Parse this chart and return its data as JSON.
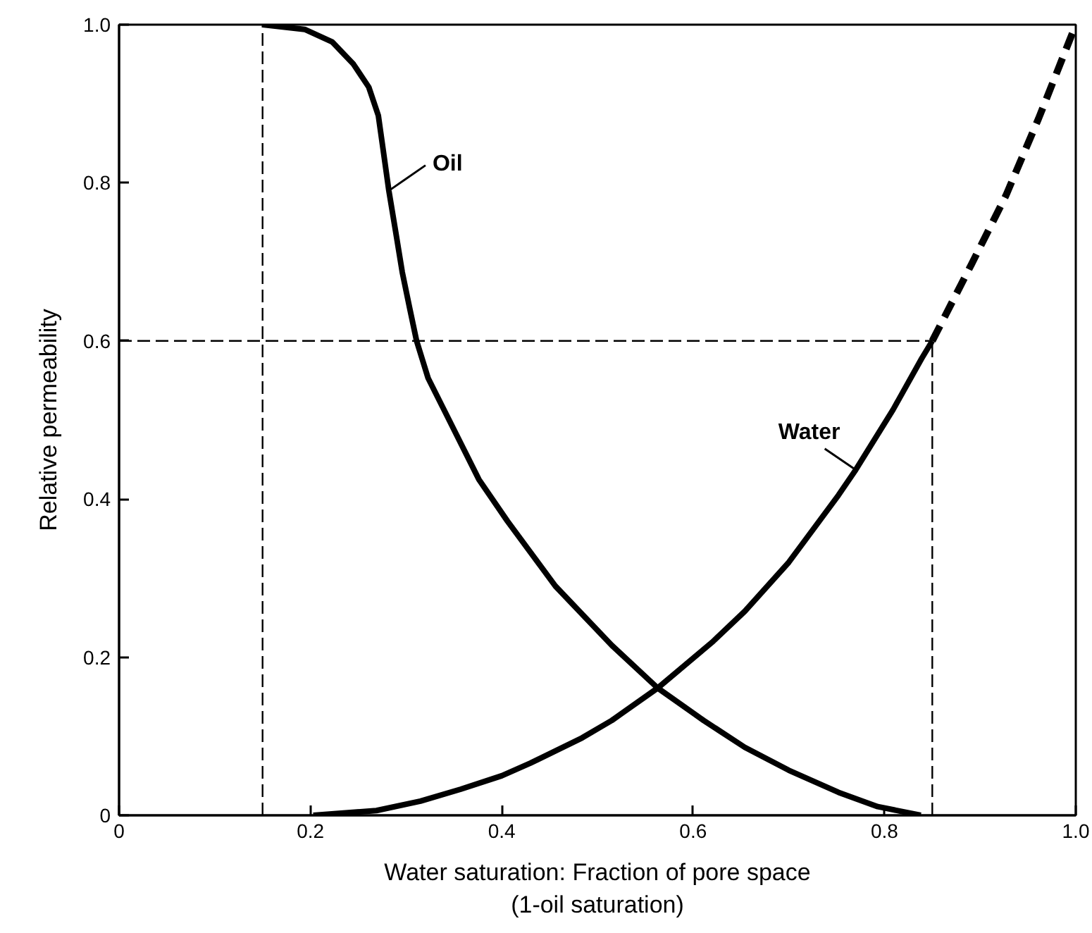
{
  "chart_data": {
    "type": "line",
    "xlabel": "Water saturation: Fraction of pore space\n(1-oil saturation)",
    "ylabel": "Relative permeability",
    "xlim": [
      0,
      1.0
    ],
    "ylim": [
      0,
      1.0
    ],
    "xticks": [
      0,
      0.2,
      0.4,
      0.6,
      0.8,
      {
        "value": 1.0,
        "label": "1.0"
      }
    ],
    "yticks": [
      0,
      0.2,
      0.4,
      0.6,
      0.8,
      {
        "value": 1.0,
        "label": "1.0"
      }
    ],
    "series": [
      {
        "name": "Oil",
        "color": "#000000",
        "line_style": "solid",
        "x": [
          0.15,
          0.194,
          0.223,
          0.245,
          0.261,
          0.271,
          0.276,
          0.282,
          0.289,
          0.296,
          0.304,
          0.311,
          0.323,
          0.34,
          0.376,
          0.406,
          0.456,
          0.515,
          0.563,
          0.611,
          0.654,
          0.7,
          0.752,
          0.793,
          0.838
        ],
        "values": [
          1.0,
          0.994,
          0.978,
          0.95,
          0.921,
          0.885,
          0.842,
          0.79,
          0.739,
          0.687,
          0.64,
          0.6,
          0.553,
          0.512,
          0.425,
          0.372,
          0.29,
          0.215,
          0.161,
          0.12,
          0.086,
          0.057,
          0.029,
          0.011,
          0.0
        ]
      },
      {
        "name": "Water",
        "color": "#000000",
        "line_style": "solid",
        "x": [
          0.203,
          0.269,
          0.315,
          0.357,
          0.4,
          0.43,
          0.484,
          0.515,
          0.563,
          0.62,
          0.654,
          0.7,
          0.752,
          0.77,
          0.809,
          0.839,
          0.85
        ],
        "values": [
          0.0,
          0.006,
          0.018,
          0.033,
          0.05,
          0.066,
          0.098,
          0.12,
          0.161,
          0.219,
          0.258,
          0.32,
          0.405,
          0.437,
          0.513,
          0.578,
          0.6
        ]
      },
      {
        "color": "#000000",
        "line_style": "dashed",
        "x": [
          0.85,
          0.891,
          0.927,
          0.961,
          1.0
        ],
        "values": [
          0.6,
          0.697,
          0.784,
          0.881,
          1.0
        ]
      }
    ],
    "ref_lines": [
      {
        "axis": "x",
        "value": 0.15,
        "line_style": "dashed",
        "color": "#000000"
      },
      {
        "axis": "y",
        "value": 0.6,
        "line_style": "dashed",
        "color": "#000000"
      },
      {
        "axis": "x",
        "value": 0.85,
        "line_style": "dashed",
        "color": "#000000"
      }
    ]
  }
}
